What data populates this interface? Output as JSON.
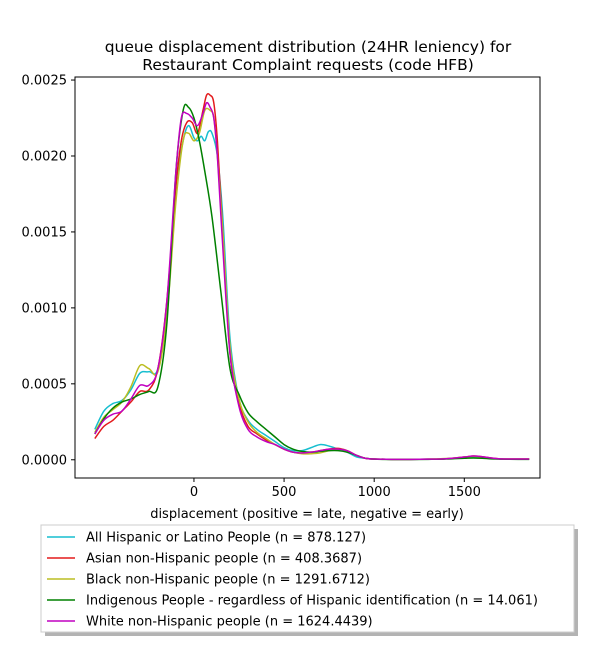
{
  "chart_data": {
    "type": "line",
    "title": [
      "queue displacement distribution (24HR leniency) for",
      "Restaurant Complaint  requests (code HFB)"
    ],
    "xlabel": "displacement (positive = late, negative = early)",
    "ylabel": "",
    "xlim": [
      -660,
      1920
    ],
    "ylim": [
      -0.00012,
      0.00252
    ],
    "xticks": [
      0,
      500,
      1000,
      1500
    ],
    "xtick_labels": [
      "0",
      "500",
      "1000",
      "1500"
    ],
    "yticks": [
      0.0,
      0.0005,
      0.001,
      0.0015,
      0.002,
      0.0025
    ],
    "ytick_labels": [
      "0.0000",
      "0.0005",
      "0.0010",
      "0.0015",
      "0.0020",
      "0.0025"
    ],
    "grid": false,
    "legend_position": "below",
    "series": [
      {
        "name": "All Hispanic or Latino People (n = 878.127)",
        "color": "#17becf",
        "x": [
          -550,
          -500,
          -450,
          -400,
          -350,
          -300,
          -250,
          -200,
          -150,
          -100,
          -60,
          -30,
          0,
          20,
          40,
          60,
          80,
          100,
          130,
          160,
          200,
          250,
          300,
          350,
          400,
          450,
          500,
          550,
          600,
          650,
          700,
          750,
          800,
          850,
          900,
          950,
          1000,
          1100,
          1200,
          1300,
          1400,
          1500,
          1550,
          1600,
          1650,
          1700,
          1800,
          1860
        ],
        "y": [
          0.0002,
          0.00032,
          0.00037,
          0.00039,
          0.00046,
          0.00057,
          0.00058,
          0.0006,
          0.001,
          0.0018,
          0.0021,
          0.0022,
          0.00212,
          0.0021,
          0.00213,
          0.0021,
          0.00216,
          0.00215,
          0.002,
          0.0016,
          0.0008,
          0.0004,
          0.00026,
          0.0002,
          0.00016,
          0.00012,
          8e-05,
          6e-05,
          6e-05,
          8e-05,
          0.0001,
          9e-05,
          7e-05,
          5e-05,
          2e-05,
          1e-05,
          5e-06,
          3e-06,
          3e-06,
          4e-06,
          7e-06,
          1.5e-05,
          2e-05,
          1.5e-05,
          8e-06,
          5e-06,
          4e-06,
          4e-06
        ]
      },
      {
        "name": "Asian non-Hispanic people (n = 408.3687)",
        "color": "#e31a1c",
        "x": [
          -550,
          -500,
          -450,
          -400,
          -350,
          -300,
          -250,
          -200,
          -150,
          -100,
          -70,
          -40,
          -10,
          20,
          50,
          70,
          90,
          110,
          130,
          160,
          200,
          250,
          300,
          350,
          400,
          450,
          500,
          550,
          600,
          650,
          700,
          750,
          800,
          850,
          900,
          950,
          1000,
          1100,
          1200,
          1300,
          1400,
          1500,
          1550,
          1600,
          1650,
          1700,
          1800,
          1860
        ],
        "y": [
          0.00014,
          0.00022,
          0.00026,
          0.00032,
          0.00038,
          0.00045,
          0.00046,
          0.0006,
          0.00105,
          0.0018,
          0.0021,
          0.00222,
          0.00222,
          0.00215,
          0.0023,
          0.0024,
          0.0024,
          0.00235,
          0.0021,
          0.0015,
          0.0007,
          0.00037,
          0.00022,
          0.00017,
          0.00013,
          0.0001,
          7e-05,
          5e-05,
          4.5e-05,
          5e-05,
          6e-05,
          7e-05,
          7.5e-05,
          6e-05,
          3e-05,
          1e-05,
          5e-06,
          3e-06,
          3e-06,
          4e-06,
          7e-06,
          1.8e-05,
          2.5e-05,
          2e-05,
          1.2e-05,
          6e-06,
          5e-06,
          5e-06
        ]
      },
      {
        "name": "Black non-Hispanic people (n = 1291.6712)",
        "color": "#bcbd22",
        "x": [
          -550,
          -500,
          -450,
          -400,
          -350,
          -300,
          -250,
          -200,
          -150,
          -100,
          -60,
          -30,
          0,
          30,
          60,
          90,
          110,
          130,
          160,
          200,
          250,
          300,
          350,
          400,
          450,
          500,
          550,
          600,
          650,
          700,
          750,
          800,
          850,
          900,
          950,
          1000,
          1100,
          1200,
          1300,
          1400,
          1500,
          1550,
          1600,
          1650,
          1700,
          1800,
          1860
        ],
        "y": [
          0.00018,
          0.00028,
          0.00033,
          0.00038,
          0.00048,
          0.00062,
          0.0006,
          0.00058,
          0.00095,
          0.0017,
          0.0021,
          0.00215,
          0.0021,
          0.00215,
          0.0023,
          0.0023,
          0.00225,
          0.002,
          0.0015,
          0.00075,
          0.0004,
          0.00025,
          0.00018,
          0.00014,
          0.0001,
          7e-05,
          5e-05,
          4e-05,
          4e-05,
          4.5e-05,
          6e-05,
          7e-05,
          6e-05,
          3e-05,
          1e-05,
          5e-06,
          3e-06,
          3e-06,
          4e-06,
          8e-06,
          1.8e-05,
          2.2e-05,
          1.8e-05,
          1e-05,
          6e-06,
          5e-06,
          5e-06
        ]
      },
      {
        "name": "Indigenous People - regardless of Hispanic identification (n = 14.061)",
        "color": "#008000",
        "x": [
          -550,
          -500,
          -450,
          -400,
          -350,
          -300,
          -250,
          -200,
          -150,
          -100,
          -60,
          -30,
          0,
          30,
          60,
          100,
          150,
          200,
          250,
          300,
          350,
          400,
          450,
          500,
          550,
          600,
          650,
          700,
          750,
          800,
          850,
          900,
          950,
          1000,
          1100,
          1200,
          1300,
          1400,
          1500,
          1550,
          1600,
          1650,
          1700,
          1800,
          1860
        ],
        "y": [
          0.00017,
          0.00027,
          0.00034,
          0.00038,
          0.0004,
          0.00043,
          0.00045,
          0.00048,
          0.0009,
          0.0019,
          0.0023,
          0.00232,
          0.00225,
          0.0021,
          0.0019,
          0.0016,
          0.0011,
          0.0006,
          0.00043,
          0.00031,
          0.00025,
          0.0002,
          0.00015,
          0.0001,
          7e-05,
          5.5e-05,
          5e-05,
          5.5e-05,
          6e-05,
          6e-05,
          5e-05,
          3e-05,
          1e-05,
          4e-06,
          2e-06,
          2e-06,
          3e-06,
          5e-06,
          1e-05,
          1.2e-05,
          1e-05,
          6e-06,
          4e-06,
          3e-06,
          3e-06
        ]
      },
      {
        "name": "White non-Hispanic people (n = 1624.4439)",
        "color": "#c000c0",
        "x": [
          -550,
          -500,
          -450,
          -400,
          -350,
          -300,
          -250,
          -200,
          -150,
          -100,
          -70,
          -40,
          -10,
          20,
          50,
          70,
          90,
          110,
          130,
          160,
          200,
          250,
          300,
          350,
          400,
          450,
          500,
          550,
          600,
          650,
          700,
          750,
          800,
          850,
          900,
          950,
          1000,
          1100,
          1200,
          1300,
          1400,
          1500,
          1550,
          1600,
          1650,
          1700,
          1800,
          1860
        ],
        "y": [
          0.00017,
          0.00026,
          0.0003,
          0.00032,
          0.0004,
          0.00049,
          0.00049,
          0.0006,
          0.00105,
          0.0019,
          0.00225,
          0.00228,
          0.00225,
          0.0022,
          0.00228,
          0.00235,
          0.00232,
          0.00225,
          0.002,
          0.0014,
          0.0007,
          0.00035,
          0.0002,
          0.00015,
          0.00012,
          0.0001,
          7e-05,
          5e-05,
          4.5e-05,
          5e-05,
          6e-05,
          7e-05,
          7e-05,
          6e-05,
          3e-05,
          1e-05,
          5e-06,
          3e-06,
          3e-06,
          4e-06,
          7e-06,
          1.8e-05,
          2.5e-05,
          2e-05,
          1.2e-05,
          6e-06,
          5e-06,
          5e-06
        ]
      }
    ]
  }
}
